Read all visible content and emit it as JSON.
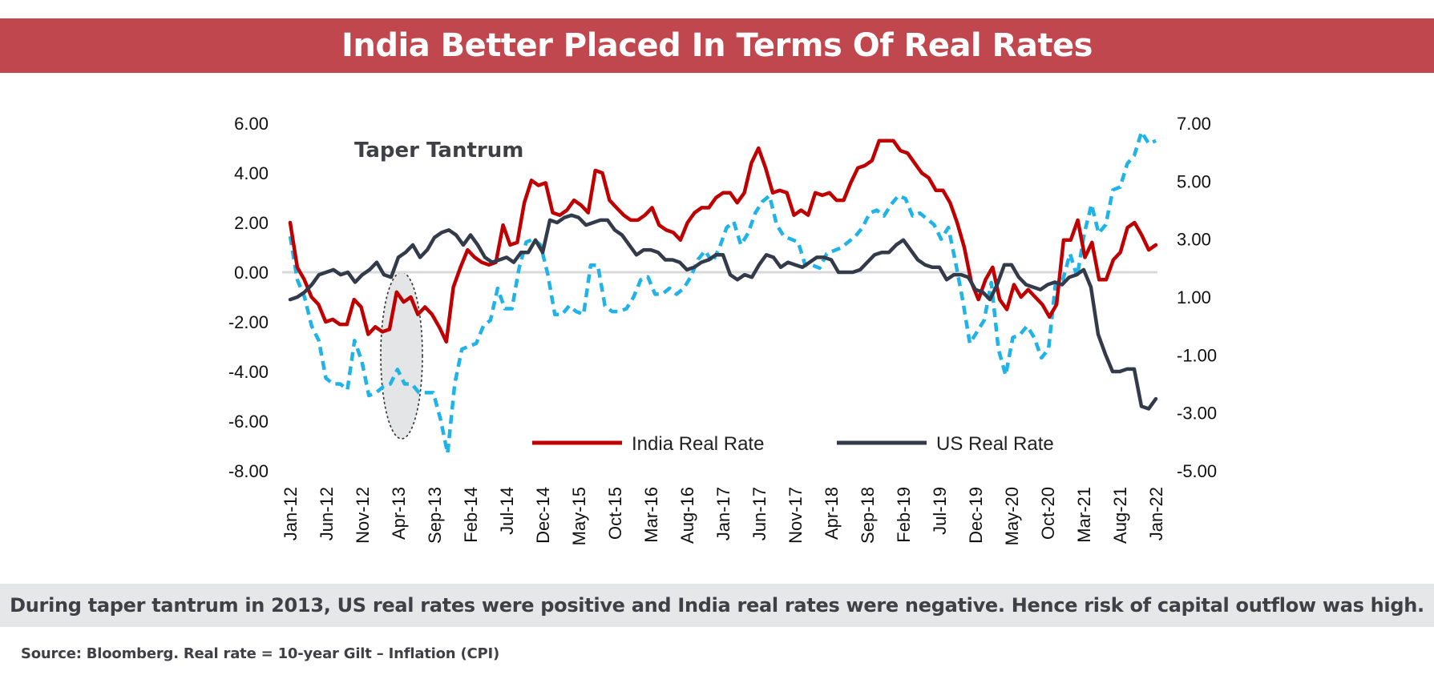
{
  "title": "India Better Placed In Terms Of Real Rates",
  "caption": "During taper tantrum in 2013, US real rates were positive and India real rates were negative. Hence risk of capital outflow was high.",
  "source": "Source: Bloomberg. Real rate = 10-year Gilt – Inflation (CPI)",
  "colors": {
    "title_bg": "#c1474f",
    "india": "#c00000",
    "us": "#333b4a",
    "third": "#1fb3e8",
    "caption_bg": "#e6e7e9"
  },
  "chart_data": {
    "type": "line",
    "annotation": "Taper Tantrum",
    "x_tick_labels": [
      "Jan-12",
      "Jun-12",
      "Nov-12",
      "Apr-13",
      "Sep-13",
      "Feb-14",
      "Jul-14",
      "Dec-14",
      "May-15",
      "Oct-15",
      "Mar-16",
      "Aug-16",
      "Jan-17",
      "Jun-17",
      "Nov-17",
      "Apr-18",
      "Sep-18",
      "Feb-19",
      "Jul-19",
      "Dec-19",
      "May-20",
      "Oct-20",
      "Mar-21",
      "Aug-21",
      "Jan-22"
    ],
    "x_start": "Jan-12",
    "x_end": "Jan-22",
    "y_left": {
      "min": -8,
      "max": 6,
      "step": 2,
      "tick_labels": [
        "6.00",
        "4.00",
        "2.00",
        "0.00",
        "-2.00",
        "-4.00",
        "-6.00",
        "-8.00"
      ]
    },
    "y_right": {
      "min": -5,
      "max": 7,
      "step": 2,
      "tick_labels": [
        "7.00",
        "5.00",
        "3.00",
        "1.00",
        "-1.00",
        "-3.00",
        "-5.00"
      ]
    },
    "legend": [
      "India Real Rate",
      "US Real Rate"
    ],
    "series": [
      {
        "name": "India Real Rate",
        "axis": "left",
        "style": "solid",
        "values": [
          2.0,
          0.2,
          -0.3,
          -1.0,
          -1.3,
          -2.0,
          -1.9,
          -2.1,
          -2.1,
          -1.1,
          -1.4,
          -2.5,
          -2.2,
          -2.4,
          -2.3,
          -0.8,
          -1.2,
          -1.0,
          -1.7,
          -1.4,
          -1.7,
          -2.2,
          -2.8,
          -0.6,
          0.2,
          0.9,
          0.6,
          0.4,
          0.3,
          0.4,
          1.9,
          1.1,
          1.2,
          2.8,
          3.7,
          3.5,
          3.6,
          2.4,
          2.3,
          2.5,
          2.9,
          2.7,
          2.4,
          4.1,
          4.0,
          2.9,
          2.6,
          2.3,
          2.1,
          2.1,
          2.3,
          2.6,
          1.9,
          1.7,
          1.6,
          1.3,
          2.0,
          2.4,
          2.6,
          2.6,
          3.0,
          3.2,
          3.2,
          2.8,
          3.2,
          4.4,
          5.0,
          4.2,
          3.2,
          3.3,
          3.2,
          2.3,
          2.5,
          2.3,
          3.2,
          3.1,
          3.2,
          2.9,
          2.9,
          3.6,
          4.2,
          4.3,
          4.5,
          5.3,
          5.3,
          5.3,
          4.9,
          4.8,
          4.4,
          4.0,
          3.8,
          3.3,
          3.3,
          2.8,
          2.0,
          1.0,
          -0.4,
          -1.1,
          -0.3,
          0.2,
          -1.1,
          -1.5,
          -0.5,
          -1.0,
          -0.7,
          -1.0,
          -1.3,
          -1.8,
          -1.3,
          1.3,
          1.3,
          2.1,
          0.6,
          1.2,
          -0.3,
          -0.3,
          0.5,
          0.8,
          1.8,
          2.0,
          1.5,
          0.9,
          1.1
        ]
      },
      {
        "name": "US Real Rate",
        "axis": "left",
        "style": "solid",
        "values": [
          -1.1,
          -1.0,
          -0.8,
          -0.5,
          -0.1,
          0.0,
          0.1,
          -0.1,
          0.0,
          -0.4,
          -0.1,
          0.1,
          0.4,
          -0.1,
          -0.2,
          0.6,
          0.8,
          1.1,
          0.6,
          0.9,
          1.4,
          1.6,
          1.7,
          1.5,
          1.1,
          1.5,
          1.1,
          0.6,
          0.4,
          0.5,
          0.6,
          0.4,
          0.8,
          0.8,
          1.3,
          0.8,
          2.1,
          2.0,
          2.2,
          2.3,
          2.2,
          1.9,
          2.0,
          2.1,
          2.1,
          1.7,
          1.5,
          1.1,
          0.7,
          0.9,
          0.9,
          0.8,
          0.5,
          0.5,
          0.4,
          0.1,
          0.2,
          0.4,
          0.5,
          0.7,
          0.7,
          -0.1,
          -0.3,
          -0.1,
          -0.2,
          0.3,
          0.7,
          0.6,
          0.2,
          0.4,
          0.3,
          0.2,
          0.4,
          0.6,
          0.6,
          0.5,
          0.0,
          0.0,
          0.0,
          0.1,
          0.4,
          0.7,
          0.8,
          0.8,
          1.1,
          1.3,
          0.9,
          0.5,
          0.3,
          0.2,
          0.2,
          -0.3,
          -0.1,
          -0.1,
          -0.2,
          -0.7,
          -0.8,
          -1.1,
          -0.5,
          0.3,
          0.3,
          -0.2,
          -0.5,
          -0.6,
          -0.7,
          -0.5,
          -0.4,
          -0.5,
          -0.2,
          -0.1,
          0.1,
          -0.6,
          -2.5,
          -3.3,
          -4.0,
          -4.0,
          -3.9,
          -3.9,
          -5.4,
          -5.5,
          -5.1
        ]
      },
      {
        "name": "",
        "axis": "right",
        "style": "dashed",
        "values": [
          3.1,
          1.6,
          1.0,
          0.0,
          -0.5,
          -1.8,
          -2.0,
          -2.0,
          -2.2,
          -0.5,
          -1.2,
          -2.4,
          -2.3,
          -2.1,
          -2.0,
          -1.5,
          -2.0,
          -2.0,
          -2.3,
          -2.3,
          -2.3,
          -3.2,
          -4.4,
          -2.0,
          -0.8,
          -0.7,
          -0.6,
          0.0,
          0.2,
          1.3,
          0.6,
          0.6,
          2.0,
          2.9,
          3.0,
          2.8,
          1.8,
          0.4,
          0.4,
          0.7,
          0.5,
          0.4,
          2.1,
          2.1,
          0.7,
          0.5,
          0.5,
          0.6,
          1.0,
          1.6,
          1.7,
          1.1,
          1.1,
          1.3,
          1.1,
          1.3,
          1.7,
          2.3,
          2.6,
          2.2,
          2.7,
          3.4,
          3.6,
          2.8,
          3.2,
          3.9,
          4.3,
          4.5,
          3.5,
          3.1,
          3.0,
          2.9,
          2.1,
          2.1,
          2.0,
          2.5,
          2.6,
          2.7,
          2.9,
          3.1,
          3.4,
          3.9,
          4.0,
          3.8,
          4.2,
          4.5,
          4.4,
          3.8,
          3.9,
          3.7,
          3.5,
          3.0,
          3.4,
          2.2,
          0.9,
          -0.6,
          -0.2,
          0.2,
          1.5,
          -0.8,
          -1.7,
          -0.4,
          -0.3,
          0.0,
          -0.4,
          -1.1,
          -0.8,
          1.5,
          1.6,
          2.5,
          1.7,
          3.2,
          4.2,
          3.2,
          3.5,
          4.7,
          4.8,
          5.6,
          5.9,
          6.7,
          6.3,
          6.4
        ]
      }
    ]
  }
}
